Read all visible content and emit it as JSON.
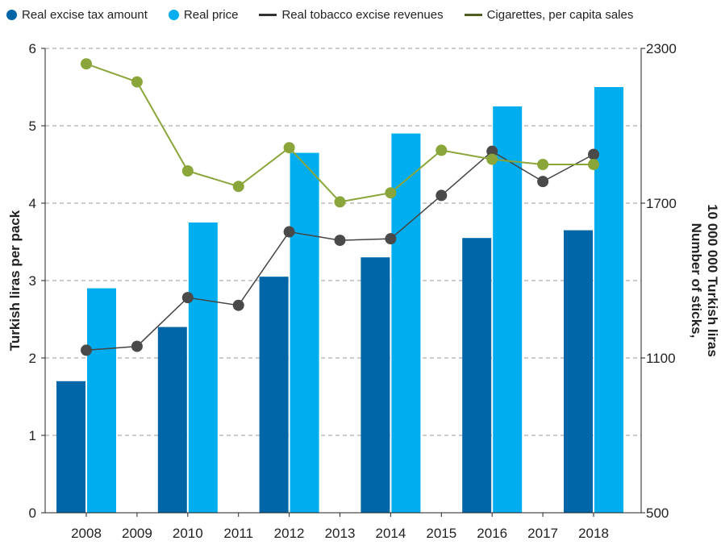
{
  "chart_data": {
    "type": "bar",
    "categories": [
      "2008",
      "2009",
      "2010",
      "2011",
      "2012",
      "2013",
      "2014",
      "2015",
      "2016",
      "2017",
      "2018"
    ],
    "bar_categories": [
      "2008",
      "2010",
      "2012",
      "2014",
      "2016",
      "2018"
    ],
    "bar_series": [
      {
        "name": "Real excise tax amount",
        "values": [
          1.7,
          2.4,
          3.05,
          3.3,
          3.55,
          3.65
        ]
      },
      {
        "name": "Real price",
        "values": [
          2.9,
          3.75,
          4.65,
          4.9,
          5.25,
          5.5
        ]
      }
    ],
    "line_series": [
      {
        "name": "Real tobacco excise revenues",
        "axis": "left",
        "values": [
          2.1,
          2.15,
          2.78,
          2.68,
          3.63,
          3.52,
          3.54,
          4.1,
          4.67,
          4.28,
          4.63
        ]
      },
      {
        "name": "Cigarettes, per capita sales",
        "axis": "right",
        "values": [
          2240,
          2170,
          1825,
          1765,
          1915,
          1705,
          1740,
          1905,
          1870,
          1850,
          1850
        ]
      }
    ],
    "ylabel": "Turkish liras per pack",
    "y2label_line1": "Number of sticks,",
    "y2label_line2": "10 000 000 Turkish liras",
    "ylim": [
      0,
      6
    ],
    "y2lim": [
      500,
      2300
    ],
    "yticks": [
      "0",
      "1",
      "2",
      "3",
      "4",
      "5",
      "6"
    ],
    "y2ticks": [
      "500",
      "1100",
      "1700",
      "2300"
    ],
    "grid": true,
    "legend_position": "top",
    "colors": {
      "excise": "#0066a8",
      "price": "#00aeef",
      "revenue_line": "#444444",
      "revenue_marker": "#4a4a4a",
      "sales": "#8aa63a"
    }
  }
}
